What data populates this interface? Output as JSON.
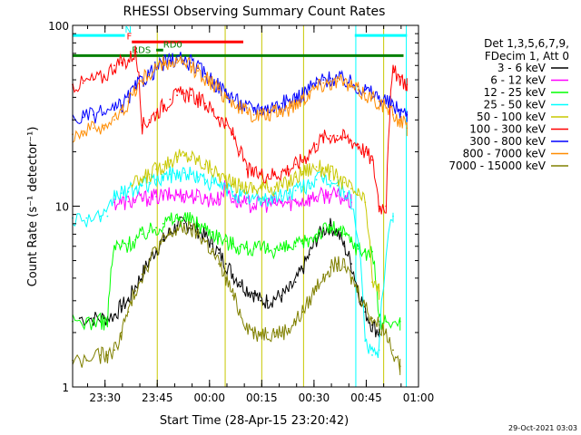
{
  "chart_data": {
    "type": "line",
    "title": "RHESSI Observing Summary Count Rates",
    "xlabel": "Start Time (28-Apr-15 23:20:42)",
    "ylabel": "Count Rate (s⁻¹ detector⁻¹)",
    "x_ticks": [
      "23:30",
      "23:45",
      "00:00",
      "00:15",
      "00:30",
      "00:45",
      "01:00"
    ],
    "x_tick_minutes": [
      9.3,
      24.3,
      39.3,
      54.3,
      69.3,
      84.3,
      99.3
    ],
    "xlim_minutes": [
      0,
      99.3
    ],
    "y_scale": "log",
    "ylim": [
      1,
      100
    ],
    "y_ticks": [
      {
        "value": 1,
        "label": "1"
      },
      {
        "value": 10,
        "label": "10"
      },
      {
        "value": 100,
        "label": "100"
      }
    ],
    "legend_header": [
      "Det 1,3,5,6,7,9,",
      "FDecim 1, Att 0"
    ],
    "legend_placement": "right",
    "timestamp": "29-Oct-2021 03:03",
    "flags": [
      {
        "label": "N",
        "color": "#00ffff",
        "level": 88,
        "segments": [
          [
            0,
            15
          ],
          [
            81,
            96
          ]
        ],
        "label_x": 15
      },
      {
        "label": "F",
        "color": "#ff0000",
        "level": 81,
        "segments": [
          [
            17,
            49
          ]
        ],
        "label_x": 15.5
      },
      {
        "label": "RD0",
        "color": "#008000",
        "level": 73,
        "segments": [
          [
            24,
            26
          ]
        ],
        "label_x": 26
      },
      {
        "label": "RDS",
        "color": "#008000",
        "level": 68,
        "segments": [
          [
            0,
            95
          ]
        ],
        "label_x": 17
      }
    ],
    "vertical_lines": [
      {
        "minute": 24.3,
        "color": "#c8c800"
      },
      {
        "minute": 43.8,
        "color": "#c8c800"
      },
      {
        "minute": 54.3,
        "color": "#c8c800"
      },
      {
        "minute": 66.3,
        "color": "#c8c800"
      },
      {
        "minute": 81.3,
        "color": "#00ffff"
      },
      {
        "minute": 89.3,
        "color": "#c8c800"
      },
      {
        "minute": 95.8,
        "color": "#00ffff"
      }
    ],
    "series": [
      {
        "name": "3 - 6 keV",
        "color": "#000000",
        "x": [
          2,
          6,
          9,
          12,
          14,
          16,
          18,
          20,
          22,
          24,
          26,
          28,
          30,
          32,
          34,
          36,
          38,
          40,
          42,
          44,
          46,
          48,
          50,
          52,
          54,
          56,
          58,
          60,
          62,
          64,
          66,
          68,
          70,
          72,
          74,
          76,
          78,
          80,
          82,
          84,
          86,
          88
        ],
        "y": [
          2.4,
          2.4,
          2.4,
          2.5,
          2.8,
          3.0,
          3.6,
          4.2,
          5.0,
          5.8,
          6.5,
          7.2,
          7.8,
          8.0,
          7.8,
          7.4,
          6.8,
          6.2,
          5.5,
          4.8,
          4.2,
          3.8,
          3.5,
          3.3,
          3.0,
          3.0,
          3.1,
          3.2,
          3.4,
          3.8,
          4.5,
          5.4,
          6.6,
          7.4,
          7.8,
          7.2,
          6.0,
          4.8,
          3.4,
          2.6,
          2.2,
          2.0
        ]
      },
      {
        "name": "6 - 12 keV",
        "color": "#ff00ff",
        "x": [
          2,
          6,
          9,
          12,
          14,
          16,
          18,
          20,
          22,
          24,
          26,
          28,
          30,
          32,
          34,
          36,
          38,
          40,
          42,
          44,
          46,
          48,
          50,
          52,
          54,
          56,
          58,
          60,
          62,
          64,
          66,
          68,
          70,
          72,
          74,
          76,
          78,
          80
        ],
        "y": [
          null,
          null,
          null,
          10.5,
          10.5,
          10.6,
          10.8,
          11.0,
          11.2,
          11.3,
          11.4,
          11.5,
          11.6,
          11.6,
          11.5,
          11.3,
          11.1,
          11.0,
          10.9,
          13.0,
          11.0,
          10.5,
          10.3,
          10.3,
          10.3,
          10.3,
          10.4,
          10.4,
          10.5,
          10.6,
          10.8,
          11.0,
          11.3,
          11.5,
          11.6,
          11.4,
          11.0,
          10.5
        ]
      },
      {
        "name": "12 - 25 keV",
        "color": "#00ff00",
        "x": [
          0,
          4,
          8,
          10,
          12,
          14,
          16,
          18,
          20,
          22,
          24,
          26,
          28,
          30,
          32,
          34,
          36,
          38,
          40,
          42,
          44,
          46,
          48,
          50,
          52,
          54,
          56,
          58,
          60,
          62,
          64,
          66,
          68,
          70,
          72,
          74,
          76,
          78,
          80,
          82,
          84,
          86,
          88,
          90,
          94
        ],
        "y": [
          2.3,
          2.3,
          2.3,
          2.3,
          6.0,
          6.0,
          6.2,
          6.5,
          7.0,
          7.3,
          7.6,
          8.0,
          8.4,
          8.6,
          8.6,
          8.4,
          8.0,
          7.6,
          7.2,
          6.8,
          6.4,
          6.2,
          6.0,
          5.9,
          5.8,
          5.8,
          5.8,
          5.8,
          5.8,
          5.9,
          6.0,
          6.2,
          6.6,
          7.0,
          7.4,
          7.6,
          7.4,
          7.0,
          6.4,
          5.8,
          5.6,
          5.6,
          2.3,
          2.3,
          2.3
        ]
      },
      {
        "name": "25 - 50 keV",
        "color": "#00ffff",
        "x": [
          0,
          4,
          8,
          10,
          12,
          14,
          16,
          18,
          20,
          22,
          24,
          26,
          28,
          30,
          32,
          34,
          36,
          38,
          40,
          42,
          44,
          46,
          48,
          50,
          52,
          54,
          56,
          58,
          60,
          62,
          64,
          66,
          68,
          70,
          72,
          74,
          76,
          78,
          80,
          84,
          86,
          88,
          92
        ],
        "y": [
          8.6,
          8.6,
          8.8,
          8.8,
          11.5,
          11.8,
          12.0,
          12.5,
          13.0,
          13.5,
          14.0,
          14.5,
          15.0,
          15.2,
          15.3,
          15.0,
          14.5,
          14.0,
          13.5,
          13.0,
          12.5,
          12.0,
          11.5,
          11.2,
          11.0,
          11.0,
          11.0,
          11.2,
          11.4,
          11.8,
          12.2,
          12.8,
          13.4,
          14.0,
          14.2,
          13.8,
          13.0,
          12.0,
          10.8,
          1.8,
          1.5,
          1.6,
          8.8
        ]
      },
      {
        "name": "50 - 100 keV",
        "color": "#c8c800",
        "x": [
          2,
          6,
          10,
          14,
          17,
          20,
          22,
          24,
          26,
          28,
          30,
          32,
          34,
          36,
          38,
          40,
          42,
          44,
          46,
          48,
          50,
          52,
          54,
          56,
          58,
          60,
          62,
          64,
          66,
          68,
          70,
          72,
          74,
          76,
          78,
          80,
          82,
          84,
          86,
          88
        ],
        "y": [
          null,
          null,
          null,
          null,
          13.0,
          14.0,
          15.0,
          16.0,
          17.0,
          18.0,
          18.8,
          19.0,
          18.8,
          18.0,
          17.0,
          16.0,
          15.0,
          14.0,
          13.2,
          13.0,
          12.8,
          12.6,
          12.6,
          12.7,
          12.8,
          13.0,
          13.5,
          14.5,
          15.5,
          16.2,
          16.5,
          16.2,
          15.5,
          14.5,
          13.5,
          12.5,
          11.5,
          10.5,
          3.8,
          3.4
        ]
      },
      {
        "name": "100 - 300 keV",
        "color": "#ff0000",
        "x": [
          0,
          3,
          6,
          9,
          12,
          14,
          16,
          18,
          20,
          22,
          24,
          26,
          28,
          30,
          32,
          34,
          36,
          38,
          40,
          42,
          44,
          46,
          48,
          50,
          52,
          54,
          56,
          58,
          60,
          62,
          64,
          66,
          68,
          70,
          72,
          74,
          76,
          78,
          80,
          82,
          84,
          86,
          88,
          90,
          92,
          94,
          96
        ],
        "y": [
          47,
          48,
          50,
          52,
          60,
          62,
          64,
          72,
          28,
          30,
          33,
          36,
          39,
          41,
          42,
          41,
          39,
          37,
          34,
          31,
          28,
          25,
          20,
          16,
          15,
          15,
          15,
          15,
          15.5,
          16,
          17,
          18,
          20,
          22,
          24,
          24.5,
          24.5,
          24,
          23,
          22,
          20,
          18,
          10,
          10,
          55,
          52,
          47
        ]
      },
      {
        "name": "300 - 800 keV",
        "color": "#0000ff",
        "x": [
          0,
          3,
          6,
          9,
          12,
          14,
          16,
          18,
          20,
          22,
          24,
          26,
          28,
          30,
          32,
          34,
          36,
          38,
          40,
          42,
          44,
          46,
          48,
          50,
          52,
          54,
          56,
          58,
          60,
          62,
          64,
          66,
          68,
          70,
          72,
          74,
          76,
          78,
          80,
          82,
          84,
          86,
          88,
          90,
          92,
          94,
          96
        ],
        "y": [
          30,
          31,
          32,
          33,
          34,
          36,
          40,
          45,
          50,
          54,
          58,
          62,
          64,
          65,
          64,
          62,
          58,
          54,
          50,
          46,
          43,
          40,
          37,
          35,
          35,
          35,
          35,
          36,
          37,
          38,
          40,
          42,
          45,
          48,
          50,
          51,
          51,
          50,
          48,
          46,
          44,
          42,
          40,
          38,
          36,
          34,
          32
        ]
      },
      {
        "name": "800 - 7000 keV",
        "color": "#ff8c00",
        "x": [
          0,
          3,
          6,
          9,
          12,
          14,
          16,
          18,
          20,
          22,
          24,
          26,
          28,
          30,
          32,
          34,
          36,
          38,
          40,
          42,
          44,
          46,
          48,
          50,
          52,
          54,
          56,
          58,
          60,
          62,
          64,
          66,
          68,
          70,
          72,
          74,
          76,
          78,
          80,
          82,
          84,
          86,
          88,
          90,
          92,
          94,
          96
        ],
        "y": [
          25,
          26,
          27,
          28,
          30,
          33,
          38,
          44,
          50,
          54,
          58,
          61,
          62,
          62,
          61,
          59,
          56,
          52,
          48,
          44,
          41,
          38,
          35,
          33,
          32,
          32,
          32,
          33,
          34,
          35,
          37,
          40,
          43,
          46,
          48,
          49,
          49,
          48,
          46,
          44,
          42,
          40,
          38,
          35,
          32,
          30,
          27
        ]
      },
      {
        "name": "7000 - 15000 keV",
        "color": "#808000",
        "x": [
          0,
          4,
          8,
          10,
          12,
          14,
          16,
          18,
          20,
          22,
          24,
          26,
          28,
          30,
          32,
          34,
          36,
          38,
          40,
          42,
          44,
          46,
          48,
          50,
          52,
          54,
          56,
          58,
          60,
          62,
          64,
          66,
          68,
          70,
          72,
          74,
          76,
          78,
          80,
          82,
          84,
          86,
          88,
          90,
          92,
          94
        ],
        "y": [
          1.4,
          1.4,
          1.5,
          1.5,
          1.6,
          2.0,
          2.6,
          3.4,
          4.2,
          5.0,
          5.8,
          6.4,
          7.0,
          7.4,
          7.6,
          7.4,
          7.0,
          6.4,
          5.6,
          4.8,
          4.0,
          3.2,
          2.6,
          2.2,
          2.0,
          2.0,
          2.0,
          2.0,
          2.0,
          2.1,
          2.3,
          2.6,
          3.0,
          3.6,
          4.2,
          4.6,
          4.8,
          4.6,
          4.0,
          3.4,
          2.8,
          2.4,
          2.2,
          2.0,
          1.6,
          1.3
        ]
      }
    ]
  }
}
